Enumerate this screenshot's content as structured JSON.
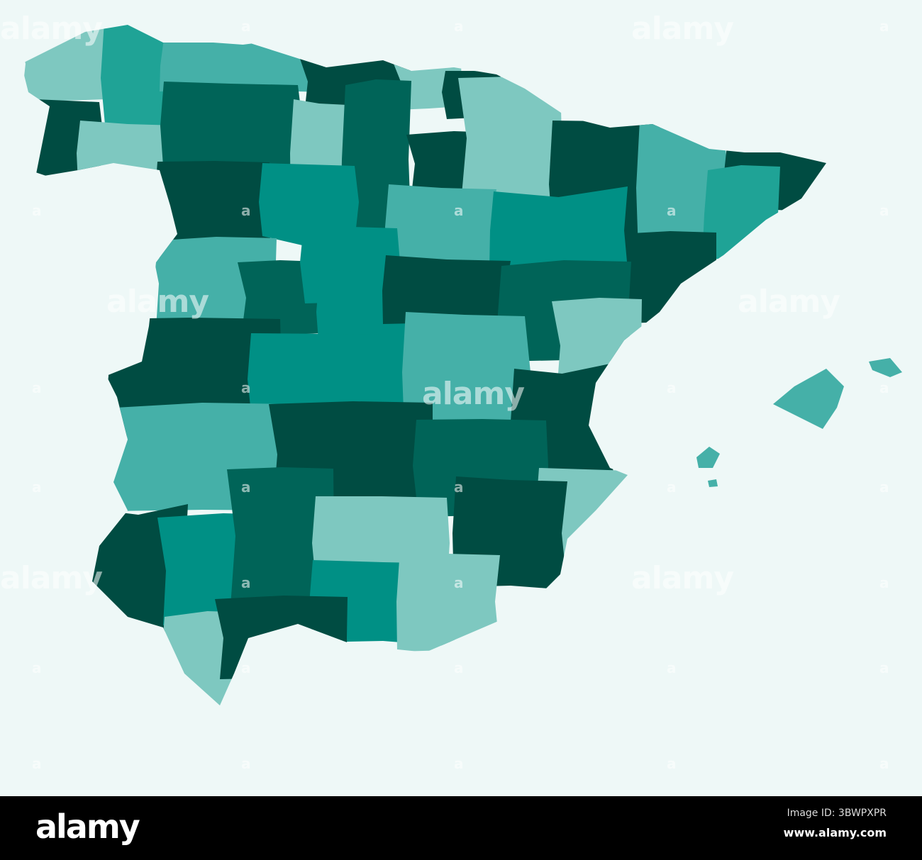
{
  "map": {
    "background": "#eef8f7",
    "palette": {
      "lightest": "#7ec8c0",
      "light": "#45b0a8",
      "mid": "#1fa396",
      "teal": "#009085",
      "dark": "#006458",
      "darkest": "#004c42"
    }
  },
  "watermark": {
    "text": "alamy",
    "icon_text": "a"
  },
  "footer": {
    "logo": "alamy",
    "image_id": "Image ID: 3BWPXPR",
    "site": "www.alamy.com"
  }
}
